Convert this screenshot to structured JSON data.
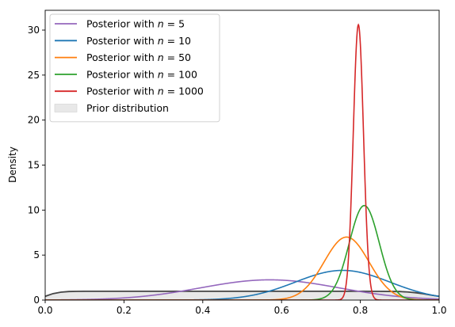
{
  "chart_data": {
    "type": "line",
    "title": "",
    "xlabel": "",
    "ylabel": "Density",
    "xlim": [
      0.0,
      1.0
    ],
    "ylim": [
      0,
      32.2
    ],
    "xticks": [
      0.0,
      0.2,
      0.4,
      0.6,
      0.8,
      1.0
    ],
    "xtick_labels": [
      "0.0",
      "0.2",
      "0.4",
      "0.6",
      "0.8",
      "1.0"
    ],
    "yticks": [
      0,
      5,
      10,
      15,
      20,
      25,
      30
    ],
    "ytick_labels": [
      "0",
      "5",
      "10",
      "15",
      "20",
      "25",
      "30"
    ],
    "grid": false,
    "legend_position": "top-left",
    "prior": {
      "name": "Prior distribution",
      "line_color": "#444444",
      "fill_color": "#e8e8e8",
      "x": [
        0.0,
        0.02,
        0.04,
        0.06,
        0.08,
        0.1,
        0.15,
        0.2,
        0.3,
        0.4,
        0.5,
        0.6,
        0.7,
        0.8,
        0.85,
        0.9,
        0.92,
        0.94,
        0.96,
        0.98,
        1.0
      ],
      "y": [
        0.42,
        0.72,
        0.88,
        0.95,
        0.97,
        0.98,
        0.98,
        0.98,
        0.98,
        0.98,
        0.98,
        0.98,
        0.98,
        0.98,
        0.97,
        0.95,
        0.9,
        0.82,
        0.7,
        0.55,
        0.42
      ]
    },
    "series": [
      {
        "name": "Posterior with n = 5",
        "legend_prefix": "Posterior with ",
        "legend_var": "n",
        "legend_value": " = 5",
        "color": "#9467bd",
        "mean": 0.57,
        "sd": 0.175,
        "peak": 2.25
      },
      {
        "name": "Posterior with n = 10",
        "legend_prefix": "Posterior with ",
        "legend_var": "n",
        "legend_value": " = 10",
        "color": "#1f77b4",
        "mean": 0.755,
        "sd": 0.12,
        "peak": 3.3
      },
      {
        "name": "Posterior with n = 50",
        "legend_prefix": "Posterior with ",
        "legend_var": "n",
        "legend_value": " = 50",
        "color": "#ff7f0e",
        "mean": 0.765,
        "sd": 0.057,
        "peak": 7.0
      },
      {
        "name": "Posterior with n = 100",
        "legend_prefix": "Posterior with ",
        "legend_var": "n",
        "legend_value": " = 100",
        "color": "#2ca02c",
        "mean": 0.81,
        "sd": 0.038,
        "peak": 10.5
      },
      {
        "name": "Posterior with n = 1000",
        "legend_prefix": "Posterior with ",
        "legend_var": "n",
        "legend_value": " = 1000",
        "color": "#d62728",
        "mean": 0.795,
        "sd": 0.013,
        "peak": 30.6
      }
    ]
  }
}
